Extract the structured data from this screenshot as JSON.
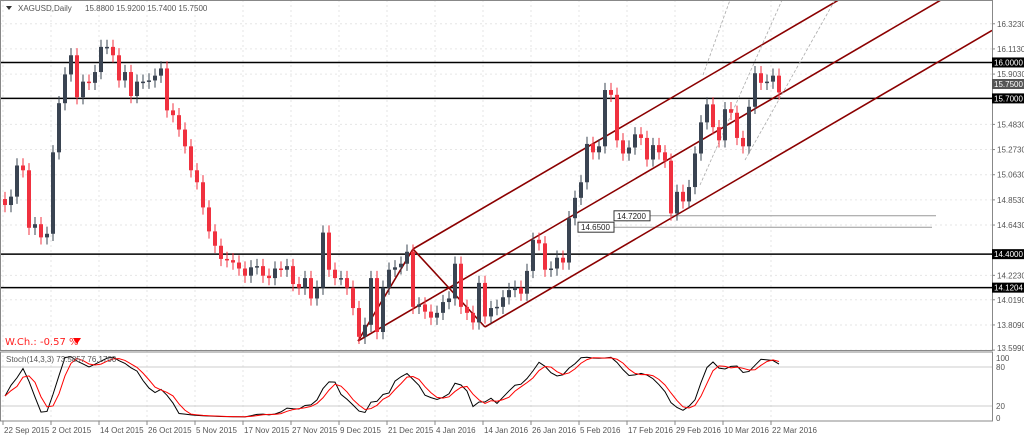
{
  "header": {
    "symbol_label": "XAGUSD,Daily",
    "ohlc": "15.8800 15.9200 15.7400 15.7500"
  },
  "weekly_change": {
    "label": "W.Ch.: -0.57 %",
    "direction_icon": "triangle-down-icon",
    "color": "#ff0000"
  },
  "indicator": {
    "label": "Stoch(14,3,3) 73.5857 76.1700",
    "levels": [
      "100",
      "80",
      "20",
      "0"
    ]
  },
  "colors": {
    "bull": "#3a4452",
    "bear": "#f0313f",
    "channel": "#8b0000",
    "stoch_main": "#000000",
    "stoch_signal": "#ff0000"
  },
  "chart_data": {
    "type": "candlestick",
    "y_ticks": [
      "16.3230",
      "16.1130",
      "15.9030",
      "15.4830",
      "15.2730",
      "15.0630",
      "14.8530",
      "14.6430",
      "14.2230",
      "14.0190",
      "13.8090",
      "13.5990"
    ],
    "y_tick_values": [
      16.323,
      16.113,
      15.903,
      15.483,
      15.273,
      15.063,
      14.853,
      14.643,
      14.223,
      14.019,
      13.809,
      13.599
    ],
    "date_labels": [
      "22 Sep 2015",
      "2 Oct 2015",
      "14 Oct 2015",
      "26 Oct 2015",
      "5 Nov 2015",
      "17 Nov 2015",
      "27 Nov 2015",
      "9 Dec 2015",
      "21 Dec 2015",
      "4 Jan 2016",
      "14 Jan 2016",
      "26 Jan 2016",
      "5 Feb 2016",
      "17 Feb 2016",
      "29 Feb 2016",
      "10 Mar 2016",
      "22 Mar 2016"
    ],
    "closes": [
      14.81,
      14.88,
      15.14,
      15.1,
      14.62,
      14.65,
      14.54,
      14.57,
      15.25,
      15.66,
      15.9,
      16.06,
      15.71,
      15.84,
      15.83,
      15.92,
      16.13,
      16.13,
      16.06,
      15.85,
      15.92,
      15.72,
      15.84,
      15.84,
      15.85,
      15.89,
      15.95,
      15.6,
      15.56,
      15.44,
      15.3,
      15.1,
      15.0,
      14.79,
      14.59,
      14.47,
      14.36,
      14.35,
      14.33,
      14.28,
      14.22,
      14.29,
      14.3,
      14.22,
      14.2,
      14.28,
      14.27,
      14.3,
      14.15,
      14.12,
      14.2,
      14.03,
      14.12,
      14.58,
      14.27,
      14.2,
      14.2,
      14.12,
      13.95,
      13.71,
      13.81,
      14.2,
      13.75,
      14.12,
      14.27,
      14.29,
      14.32,
      14.42,
      13.96,
      13.98,
      13.92,
      13.87,
      13.91,
      14.0,
      14.03,
      14.32,
      13.96,
      13.91,
      13.83,
      14.16,
      13.88,
      13.95,
      13.96,
      14.04,
      14.1,
      14.12,
      14.07,
      14.26,
      14.52,
      14.49,
      14.27,
      14.28,
      14.37,
      14.33,
      14.7,
      14.87,
      15.0,
      15.32,
      15.25,
      15.3,
      15.77,
      15.73,
      15.35,
      15.24,
      15.29,
      15.4,
      15.37,
      15.19,
      15.31,
      15.25,
      15.18,
      14.74,
      14.92,
      14.84,
      14.96,
      15.24,
      15.5,
      15.65,
      15.46,
      15.35,
      15.61,
      15.58,
      15.37,
      15.3,
      15.63,
      15.91,
      15.83,
      15.84,
      15.89,
      15.75
    ],
    "horizontal_levels": [
      {
        "value": 16.0,
        "label": "16.0000"
      },
      {
        "value": 15.7,
        "label": "15.7000"
      },
      {
        "value": 14.4,
        "label": "14.4000"
      },
      {
        "value": 14.1204,
        "label": "14.1204"
      }
    ],
    "current_price": {
      "value": 15.75,
      "label": "15.7500"
    },
    "price_marks": [
      {
        "value": 14.72,
        "label": "14.7200"
      },
      {
        "value": 14.65,
        "label": "14.6500"
      }
    ]
  }
}
